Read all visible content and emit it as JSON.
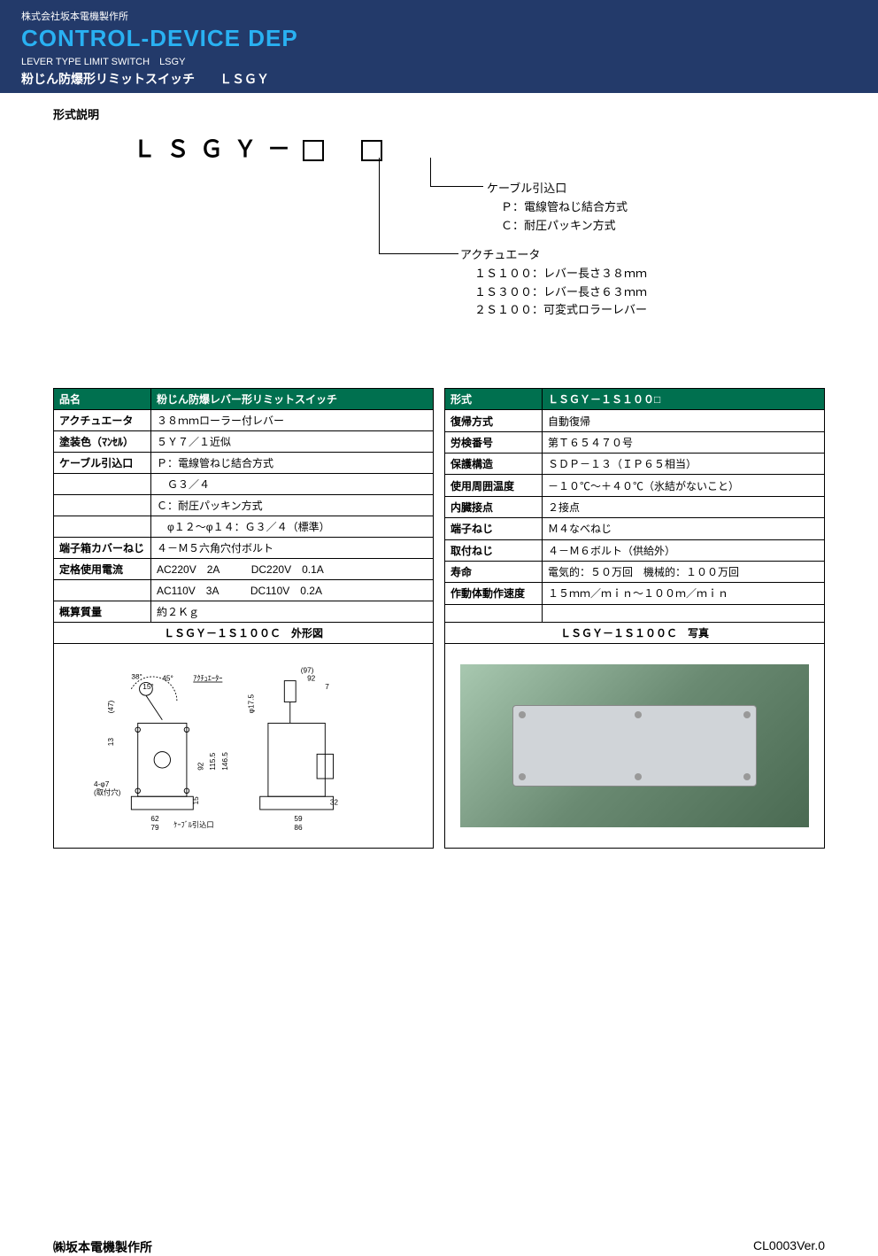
{
  "header": {
    "company": "株式会社坂本電機製作所",
    "product_line": "CONTROL-DEVICE DEP",
    "subtitle_en": "LEVER TYPE LIMIT SWITCH　LSGY",
    "subtitle_jp": "粉じん防爆形リミットスイッチ　　ＬＳＧＹ"
  },
  "section_title": "形式説明",
  "model_code": {
    "prefix": "ＬＳＧＹ－"
  },
  "callouts": {
    "cable": {
      "title": "ケーブル引込口",
      "items": [
        "Ｐ：電線管ねじ結合方式",
        "Ｃ：耐圧パッキン方式"
      ]
    },
    "actuator": {
      "title": "アクチュエータ",
      "items": [
        "１Ｓ１００：レバー長さ３８ｍｍ",
        "１Ｓ３００：レバー長さ６３ｍｍ",
        "２Ｓ１００：可変式ロラーレバー"
      ]
    }
  },
  "spec_left": {
    "header": {
      "c1": "品名",
      "c2": "粉じん防爆レバー形リミットスイッチ"
    },
    "rows": [
      {
        "c1": "アクチュエータ",
        "c2": "３８ｍｍローラー付レバー"
      },
      {
        "c1": "塗装色（ﾏﾝｾﾙ）",
        "c2": "５Ｙ７／１近似"
      },
      {
        "c1": "ケーブル引込口",
        "c2": "Ｐ：電線管ねじ結合方式"
      },
      {
        "c1": "",
        "c2": "　Ｇ３／４"
      },
      {
        "c1": "",
        "c2": "Ｃ：耐圧パッキン方式"
      },
      {
        "c1": "",
        "c2": "　φ１２～φ１４：Ｇ３／４（標準）"
      },
      {
        "c1": "端子箱カバーねじ",
        "c2": "４－Ｍ５六角穴付ボルト"
      },
      {
        "c1": "定格使用電流",
        "c2": "AC220V　2A　　　DC220V　0.1A"
      },
      {
        "c1": "",
        "c2": "AC110V　3A　　　DC110V　0.2A"
      },
      {
        "c1": "概算質量",
        "c2": "約２Ｋｇ"
      }
    ]
  },
  "spec_right": {
    "header": {
      "c1": "形式",
      "c2": "ＬＳＧＹ－１Ｓ１００□"
    },
    "rows": [
      {
        "c1": "復帰方式",
        "c2": "自動復帰"
      },
      {
        "c1": "労検番号",
        "c2": "第Ｔ６５４７０号"
      },
      {
        "c1": "保護構造",
        "c2": "ＳＤＰ－１３（ＩＰ６５相当）"
      },
      {
        "c1": "使用周囲温度",
        "c2": "－１０℃～＋４０℃（氷結がないこと）"
      },
      {
        "c1": "内臓接点",
        "c2": "２接点"
      },
      {
        "c1": "端子ねじ",
        "c2": "Ｍ４なべねじ"
      },
      {
        "c1": "取付ねじ",
        "c2": "４－Ｍ６ボルト（供給外）"
      },
      {
        "c1": "寿命",
        "c2": "電気的：５０万回　機械的：１００万回"
      },
      {
        "c1": "作動体動作速度",
        "c2": "１５ｍｍ／ｍｉｎ～１００ｍ／ｍｉｎ"
      },
      {
        "c1": "",
        "c2": ""
      }
    ]
  },
  "figure_left_title": "ＬＳＧＹ－１Ｓ１００Ｃ　外形図",
  "figure_right_title": "ＬＳＧＹ－１Ｓ１００Ｃ　写真",
  "drawing": {
    "labels": {
      "actuator": "ｱｸﾁｭｴｰﾀｰ",
      "cable": "ｹｰﾌﾞﾙ引込口",
      "mount": "4-φ7\n(取付穴)"
    },
    "dims": {
      "w97": "(97)",
      "w92": "92",
      "w7": "7",
      "d175": "φ17.5",
      "h47": "(47)",
      "h13": "13",
      "h92": "92",
      "h1155": "115.5",
      "h1465": "146.5",
      "h15": "15",
      "w62": "62",
      "w79": "79",
      "h32": "32",
      "w59": "59",
      "w86": "86"
    },
    "angles": {
      "a38": "38°",
      "a45": "45°",
      "a15": "15°"
    }
  },
  "colors": {
    "header_bg": "#233a6a",
    "product_line": "#29b1f2",
    "table_header_bg": "#00704f",
    "table_header_fg": "#ffffff"
  },
  "footer": {
    "left": "㈱坂本電機製作所",
    "right": "CL0003Ver.0"
  }
}
